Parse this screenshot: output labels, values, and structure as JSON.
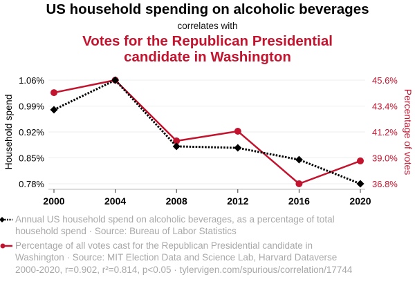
{
  "header": {
    "title": "US household spending on alcoholic beverages",
    "subtitle": "correlates with",
    "title2_line1": "Votes for the Republican Presidential",
    "title2_line2": "candidate in Washington"
  },
  "colors": {
    "series1": "#000000",
    "series2": "#c2142e",
    "grid": "#eeeeee",
    "legend_text": "#a8a8a8"
  },
  "chart_data": {
    "type": "line",
    "title": "US household spending on alcoholic beverages correlates with Votes for the Republican Presidential candidate in Washington",
    "x": [
      2000,
      2004,
      2008,
      2012,
      2016,
      2020
    ],
    "x_tick_labels": [
      "2000",
      "2004",
      "2008",
      "2012",
      "2016",
      "2020"
    ],
    "xlim": [
      2000,
      2020
    ],
    "grid": true,
    "legend_placement": "bottom",
    "y_left": {
      "label": "Household spend",
      "ylim": [
        0.78,
        1.06
      ],
      "tick_labels": [
        "1.06%",
        "0.99%",
        "0.92%",
        "0.85%",
        "0.78%"
      ],
      "ticks": [
        1.06,
        0.99,
        0.92,
        0.85,
        0.78
      ]
    },
    "y_right": {
      "label": "Percentage of votes",
      "ylim": [
        36.8,
        45.6
      ],
      "tick_labels": [
        "45.6%",
        "43.4%",
        "41.2%",
        "39.0%",
        "36.8%"
      ],
      "ticks": [
        45.6,
        43.4,
        41.2,
        39.0,
        36.8
      ]
    },
    "series": [
      {
        "name": "Annual US household spend on alcoholic beverages, as a percentage of total household spend",
        "axis": "left",
        "style": "dotted",
        "marker": "diamond",
        "color": "#000000",
        "values": [
          0.98,
          1.06,
          0.881,
          0.877,
          0.845,
          0.78
        ]
      },
      {
        "name": "Percentage of all votes cast for the Republican Presidential candidate in Washington",
        "axis": "right",
        "style": "solid",
        "marker": "circle",
        "color": "#c2142e",
        "values": [
          44.54,
          45.6,
          40.44,
          41.26,
          36.8,
          38.74
        ]
      }
    ]
  },
  "legend": {
    "series1_line1": "Annual US household spend on alcoholic beverages, as a percentage of total",
    "series1_line2": "household spend · Source: Bureau of Labor Statistics",
    "series2_line1": "Percentage of all votes cast for the Republican Presidential candidate in",
    "series2_line2": "Washington · Source: MIT Election Data and Science Lab, Harvard Dataverse"
  },
  "footer": {
    "stats": "2000-2020, r=0.902, r²=0.814, p<0.05 · tylervigen.com/spurious/correlation/17744"
  }
}
